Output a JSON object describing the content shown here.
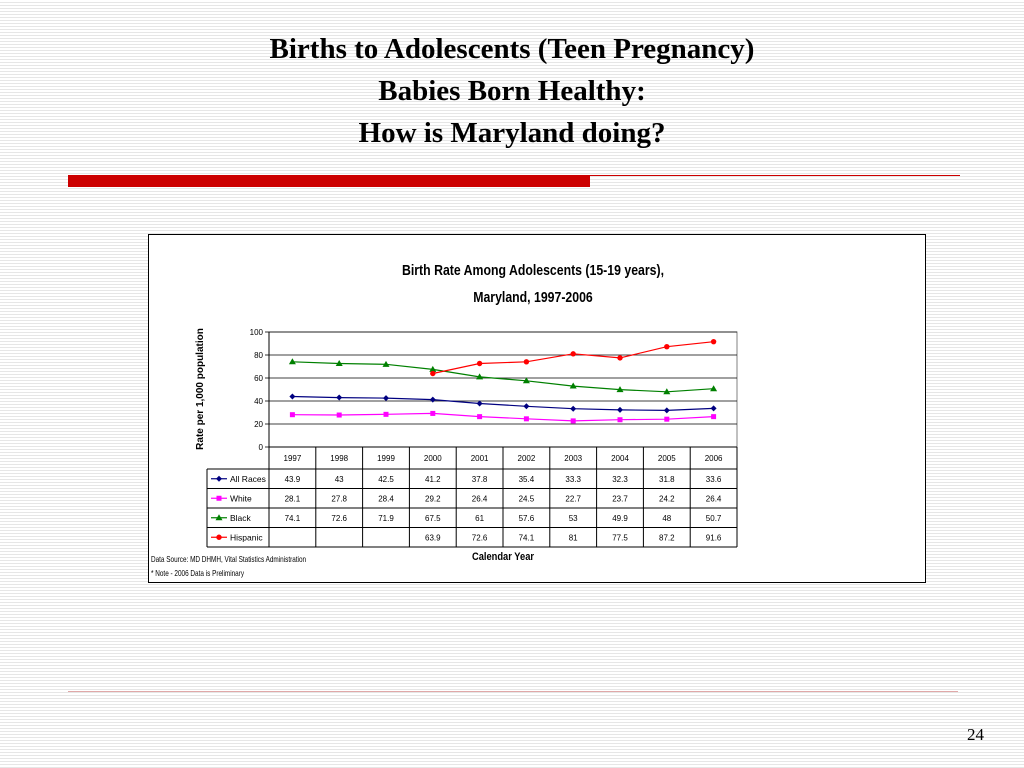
{
  "slide": {
    "title_lines": [
      "Births to Adolescents (Teen Pregnancy)",
      "Babies Born Healthy:",
      "How is Maryland doing?"
    ],
    "page_number": "24",
    "accent_color": "#cc0000"
  },
  "chart_data": {
    "type": "line",
    "title": [
      "Birth Rate Among Adolescents (15-19 years),",
      "Maryland, 1997-2006"
    ],
    "xlabel": "Calendar Year",
    "ylabel": "Rate per 1,000 population",
    "ylim": [
      0,
      100
    ],
    "yticks": [
      0,
      20,
      40,
      60,
      80,
      100
    ],
    "categories": [
      "1997",
      "1998",
      "1999",
      "2000",
      "2001",
      "2002",
      "2003",
      "2004",
      "2005",
      "2006"
    ],
    "grid": true,
    "legend": "data-table",
    "series": [
      {
        "name": "All Races",
        "marker": "diamond",
        "color": "#000080",
        "values": [
          43.9,
          43,
          42.5,
          41.2,
          37.8,
          35.4,
          33.3,
          32.3,
          31.8,
          33.6
        ]
      },
      {
        "name": "White",
        "marker": "square",
        "color": "#ff00ff",
        "values": [
          28.1,
          27.8,
          28.4,
          29.2,
          26.4,
          24.5,
          22.7,
          23.7,
          24.2,
          26.4
        ]
      },
      {
        "name": "Black",
        "marker": "triangle",
        "color": "#008000",
        "values": [
          74.1,
          72.6,
          71.9,
          67.5,
          61,
          57.6,
          53,
          49.9,
          48,
          50.7
        ]
      },
      {
        "name": "Hispanic",
        "marker": "circle",
        "color": "#ff0000",
        "values": [
          null,
          null,
          null,
          63.9,
          72.6,
          74.1,
          81,
          77.5,
          87.2,
          91.6
        ]
      }
    ],
    "notes": [
      "Data Source: MD DHMH, Vital Statistics Administration",
      "* Note - 2006 Data is Preliminary"
    ]
  }
}
